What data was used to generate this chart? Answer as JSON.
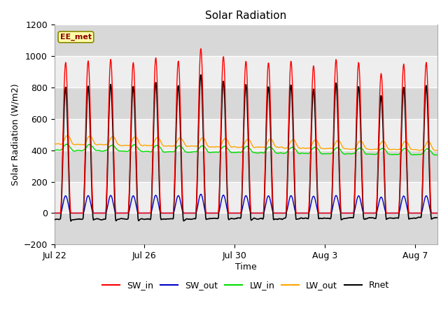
{
  "title": "Solar Radiation",
  "xlabel": "Time",
  "ylabel": "Solar Radiation (W/m2)",
  "ylim": [
    -200,
    1200
  ],
  "yticks": [
    -200,
    0,
    200,
    400,
    600,
    800,
    1000,
    1200
  ],
  "n_days": 17,
  "xtick_labels": [
    "Jul 22",
    "Jul 26",
    "Jul 30",
    "Aug 3",
    "Aug 7"
  ],
  "xtick_positions": [
    0,
    4,
    8,
    12,
    16
  ],
  "legend_labels": [
    "SW_in",
    "SW_out",
    "LW_in",
    "LW_out",
    "Rnet"
  ],
  "legend_colors": [
    "#ff0000",
    "#0000cc",
    "#00dd00",
    "#ffa500",
    "#000000"
  ],
  "annotation_text": "EE_met",
  "annotation_color": "#8b0000",
  "annotation_bg": "#ffffaa",
  "annotation_border": "#888800",
  "fig_bg": "#ffffff",
  "plot_bg": "#ffffff",
  "band_color_dark": "#d8d8d8",
  "band_color_light": "#eeeeee",
  "grid_color": "#cccccc"
}
